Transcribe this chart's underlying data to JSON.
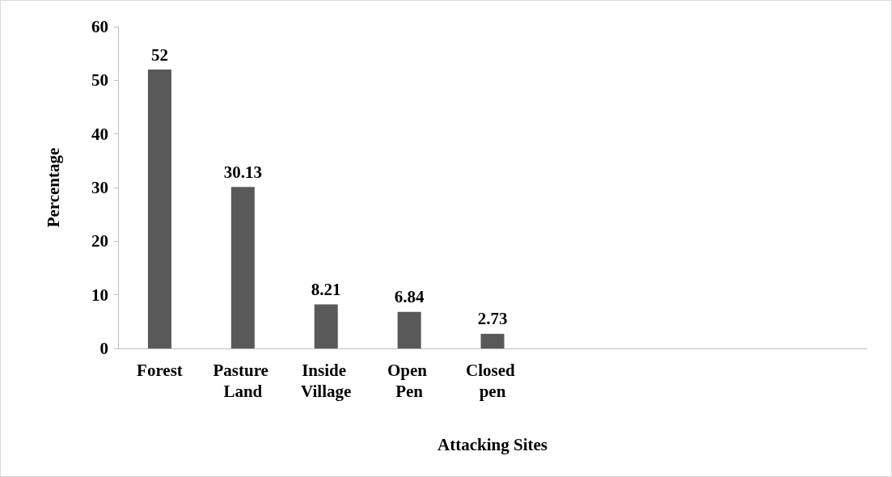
{
  "chart_data": {
    "type": "bar",
    "xlabel": "Attacking Sites",
    "ylabel": "Percentage",
    "categories": [
      "Forest",
      "Pasture Land",
      "Inside Village",
      "Open Pen",
      "Closed pen",
      null,
      null,
      null,
      null
    ],
    "values": [
      52,
      30.13,
      8.21,
      6.84,
      2.73,
      null,
      null,
      null,
      null
    ],
    "color": "#595959",
    "ylim": [
      0,
      60
    ],
    "yticks": [
      0,
      10,
      20,
      30,
      40,
      50,
      60
    ],
    "grid": false,
    "data_labels": true
  }
}
